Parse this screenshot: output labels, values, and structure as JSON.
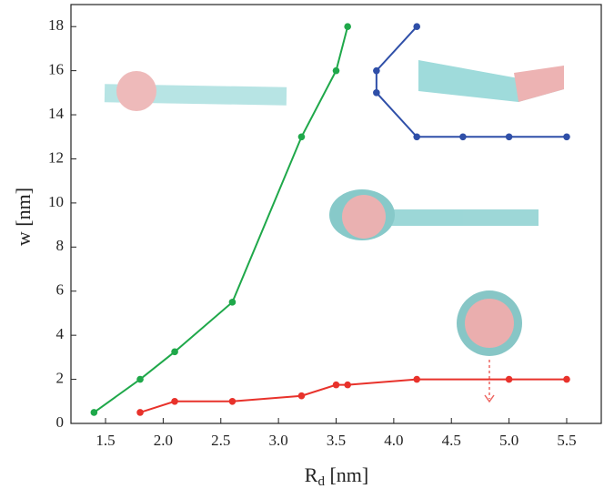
{
  "chart_data": {
    "type": "line",
    "x_label": {
      "base": "R",
      "subscript": "d",
      "rest": " [nm]"
    },
    "y_label": "w [nm]",
    "xlim": [
      1.2,
      5.8
    ],
    "ylim": [
      0,
      19
    ],
    "xticks": [
      1.5,
      {
        "value": 2,
        "label": "2.0"
      },
      2.5,
      {
        "value": 3,
        "label": "3.0"
      },
      3.5,
      {
        "value": 4,
        "label": "4.0"
      },
      4.5,
      {
        "value": 5,
        "label": "5.0"
      },
      5.5
    ],
    "yticks": [
      0,
      2,
      4,
      6,
      8,
      10,
      12,
      14,
      16,
      18
    ],
    "series": [
      {
        "color": "#1fa84a",
        "x": [
          1.4,
          1.8,
          2.1,
          2.6,
          3.2,
          3.5,
          3.6
        ],
        "values": [
          0.5,
          2,
          3.25,
          5.5,
          13,
          16,
          18
        ]
      },
      {
        "color": "#e8322b",
        "x": [
          1.8,
          2.1,
          2.6,
          3.2,
          3.5,
          3.6,
          4.2,
          5.0,
          5.5
        ],
        "values": [
          0.5,
          1,
          1,
          1.25,
          1.75,
          1.75,
          2,
          2,
          2
        ]
      },
      {
        "color": "#2f4fa8",
        "x": [
          4.2,
          3.85,
          3.85,
          4.2,
          4.6,
          5.0,
          5.5
        ],
        "values": [
          18,
          16,
          15,
          13,
          13,
          13,
          13
        ]
      }
    ]
  }
}
